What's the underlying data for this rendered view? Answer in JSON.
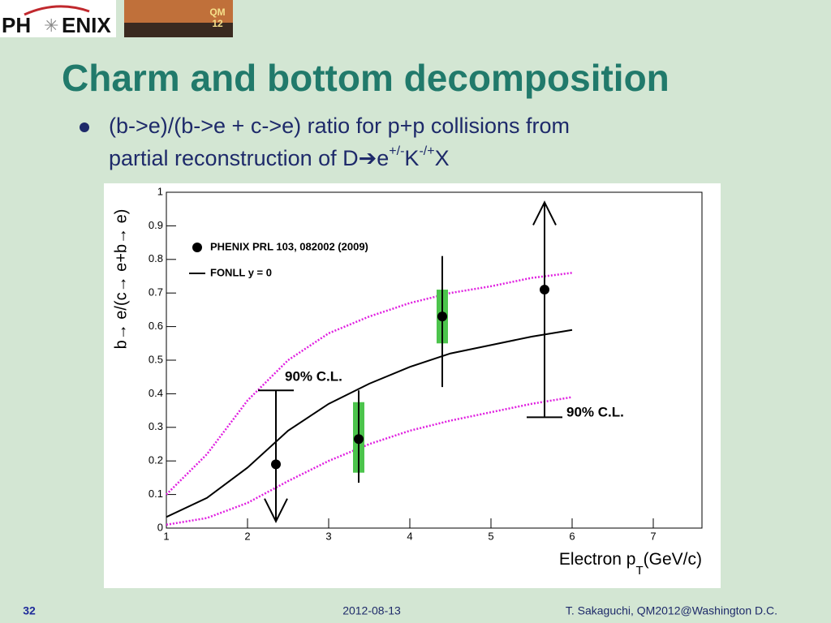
{
  "slide": {
    "logo": [
      "PH",
      "ENIX"
    ],
    "badge": [
      "QM",
      "12"
    ],
    "title": "Charm and bottom decomposition",
    "bullet": [
      "(b->e)/(b->e + c->e) ratio for p+p collisions from",
      "partial reconstruction of D",
      "➔",
      "e",
      "+/-",
      "K",
      "-/+",
      "X"
    ],
    "footer": {
      "page": "32",
      "date": "2012-08-13",
      "author": "T. Sakaguchi, QM2012@Washington D.C."
    }
  },
  "chart_data": {
    "type": "scatter",
    "y_label": "b→ e/(c→ e+b→ e)",
    "x_label": [
      "Electron p",
      "T",
      "(GeV/c)"
    ],
    "xlim": [
      1,
      7.6
    ],
    "xticks": [
      1,
      2,
      3,
      4,
      5,
      6,
      7
    ],
    "ylim": [
      0,
      1
    ],
    "yticks": [
      0,
      0.1,
      0.2,
      0.3,
      0.4,
      0.5,
      0.6,
      0.7,
      0.8,
      0.9,
      1
    ],
    "series": [
      {
        "name": "PHENIX PRL 103, 082002 (2009)",
        "color": "#000000",
        "x": [
          2.35,
          3.37,
          4.4,
          5.66
        ],
        "values": [
          0.19,
          0.265,
          0.63,
          0.71
        ],
        "err_low": [
          null,
          0.135,
          0.42,
          0.33
        ],
        "err_high": [
          0.41,
          0.41,
          0.81,
          null
        ],
        "arrow_to": [
          0.02,
          null,
          null,
          0.97
        ],
        "syst_low": [
          null,
          0.165,
          0.55,
          null
        ],
        "syst_high": [
          null,
          0.375,
          0.71,
          null
        ],
        "syst_color": "#4cc44c"
      }
    ],
    "curve_x": [
      1,
      1.5,
      2,
      2.5,
      3,
      3.5,
      4,
      4.5,
      5,
      5.5,
      6
    ],
    "lines": [
      {
        "name": "FONLL y = 0",
        "color": "#000000",
        "values": [
          0.033,
          0.09,
          0.18,
          0.29,
          0.37,
          0.43,
          0.48,
          0.52,
          0.545,
          0.57,
          0.59
        ]
      }
    ],
    "band": {
      "color": "#e020e0",
      "upper": [
        0.1,
        0.22,
        0.38,
        0.5,
        0.58,
        0.63,
        0.67,
        0.7,
        0.72,
        0.745,
        0.76
      ],
      "lower": [
        0.01,
        0.03,
        0.075,
        0.14,
        0.2,
        0.25,
        0.29,
        0.32,
        0.345,
        0.37,
        0.39
      ]
    },
    "annotations": [
      "90% C.L.",
      "90% C.L."
    ]
  }
}
